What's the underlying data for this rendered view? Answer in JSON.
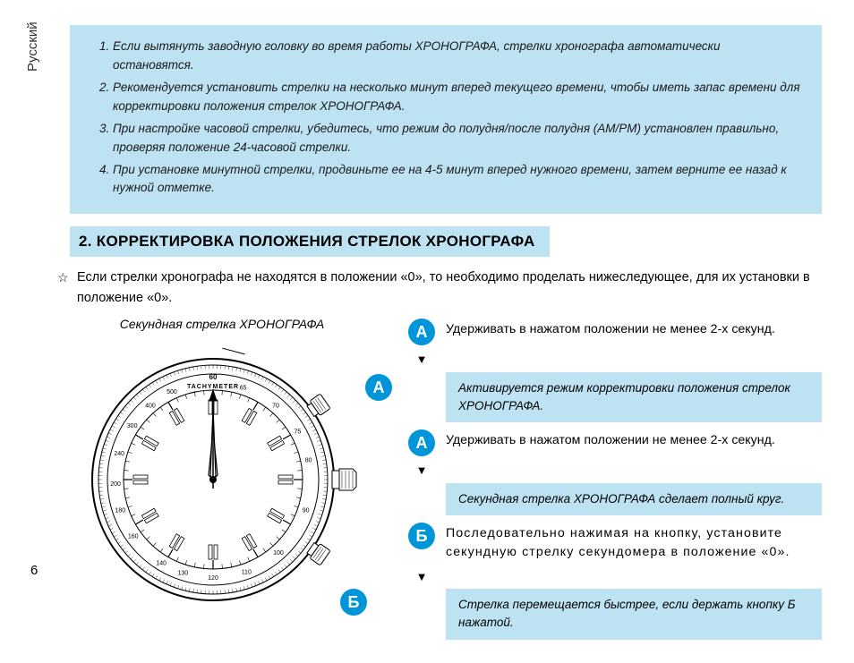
{
  "colors": {
    "highlight_bg": "#bde3f2",
    "button_bg": "#0095d9",
    "button_fg": "#ffffff",
    "text": "#1a1a1a"
  },
  "side_label": "Русский",
  "notes": [
    "Если вытянуть заводную головку во время работы ХРОНОГРАФА, стрелки хронографа автоматически остановятся.",
    "Рекомендуется установить стрелки на несколько минут вперед текущего времени, чтобы иметь запас времени для корректировки положения  стрелок ХРОНОГРАФА.",
    "При настройке часовой стрелки, убедитесь, что режим до полудня/после полудня (AM/PM) установлен правильно, проверяя положение 24-часовой стрелки.",
    "При установке минутной стрелки, продвиньте ее на 4-5 минут вперед нужного времени, затем верните ее назад к нужной отметке."
  ],
  "section_title": "2.  КОРРЕКТИРОВКА ПОЛОЖЕНИЯ СТРЕЛОК ХРОНОГРАФА",
  "intro_star": "☆",
  "intro": "Если стрелки хронографа не находятся в положении «0», то необходимо проделать нижеследующее, для их установки  в положение «0».",
  "watch_caption": "Секундная стрелка ХРОНОГРАФА",
  "labels": {
    "A": "А",
    "B": "Б"
  },
  "steps": {
    "a1": "Удерживать в нажатом положении не менее 2-х секунд.",
    "callout1": "Активируется режим корректировки положения стрелок ХРОНОГРАФА.",
    "a2": "Удерживать в нажатом положении не менее 2-х секунд.",
    "callout2": "Секундная стрелка ХРОНОГРАФА сделает полный круг.",
    "b1": "Последовательно нажимая на кнопку, установите секундную стрелку секундомера в положение «0».",
    "callout3": "Стрелка перемещается быстрее, если держать кнопку Б нажатой."
  },
  "page_number": "6",
  "watch": {
    "tachymeter_label": "TACHYMETER",
    "tachy_top": "60",
    "tachy_values": [
      "65",
      "70",
      "75",
      "80",
      "90",
      "100",
      "110",
      "120",
      "130",
      "140",
      "160",
      "180",
      "200",
      "240",
      "300",
      "400",
      "500"
    ]
  }
}
